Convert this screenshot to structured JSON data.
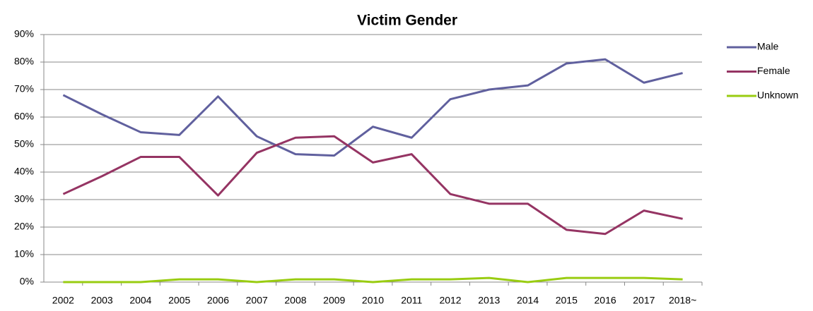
{
  "chart_data": {
    "type": "line",
    "title": "Victim Gender",
    "categories": [
      "2002",
      "2003",
      "2004",
      "2005",
      "2006",
      "2007",
      "2008",
      "2009",
      "2010",
      "2011",
      "2012",
      "2013",
      "2014",
      "2015",
      "2016",
      "2017",
      "2018~"
    ],
    "series": [
      {
        "name": "Male",
        "color": "#60609e",
        "values": [
          68,
          61,
          54.5,
          53.5,
          67.5,
          53,
          46.5,
          46,
          56.5,
          52.5,
          66.5,
          70,
          71.5,
          79.5,
          81,
          72.5,
          76
        ]
      },
      {
        "name": "Female",
        "color": "#953463",
        "values": [
          32,
          38.5,
          45.5,
          45.5,
          31.5,
          47,
          52.5,
          53,
          43.5,
          46.5,
          32,
          28.5,
          28.5,
          19,
          17.5,
          26,
          23
        ]
      },
      {
        "name": "Unknown",
        "color": "#99cc11",
        "values": [
          0,
          0,
          0,
          1,
          1,
          0,
          1,
          1,
          0,
          1,
          1,
          1.5,
          0,
          1.5,
          1.5,
          1.5,
          1
        ]
      }
    ],
    "ylim": [
      0,
      90
    ],
    "yticks": [
      {
        "value": 0,
        "label": "0%"
      },
      {
        "value": 10,
        "label": "10%"
      },
      {
        "value": 20,
        "label": "20%"
      },
      {
        "value": 30,
        "label": "30%"
      },
      {
        "value": 40,
        "label": "40%"
      },
      {
        "value": 50,
        "label": "50%"
      },
      {
        "value": 60,
        "label": "60%"
      },
      {
        "value": 70,
        "label": "70%"
      },
      {
        "value": 80,
        "label": "80%"
      },
      {
        "value": 90,
        "label": "90%"
      }
    ],
    "grid": true,
    "legend": "right"
  }
}
